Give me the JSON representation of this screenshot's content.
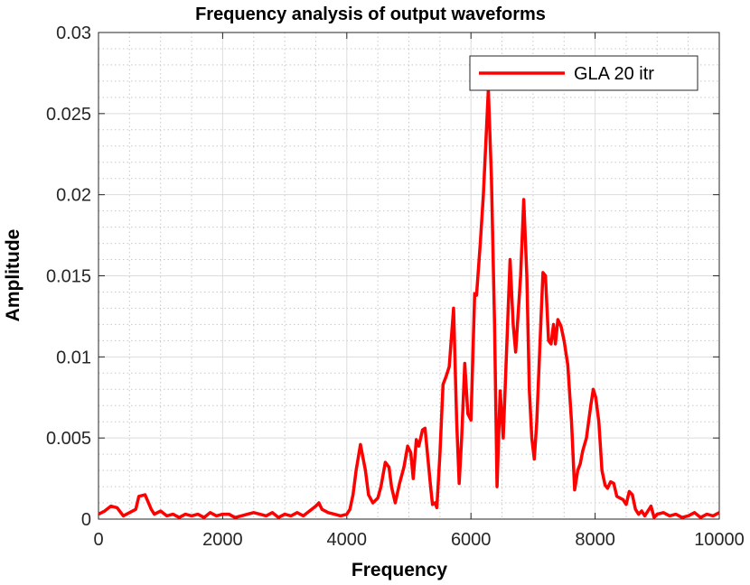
{
  "chart_data": {
    "type": "line",
    "title": "Frequency analysis of output waveforms",
    "xlabel": "Frequency",
    "ylabel": "Amplitude",
    "x": [
      0,
      100,
      200,
      300,
      400,
      500,
      600,
      650,
      750,
      850,
      900,
      1000,
      1100,
      1200,
      1300,
      1400,
      1500,
      1600,
      1700,
      1800,
      1900,
      2000,
      2100,
      2200,
      2300,
      2400,
      2500,
      2600,
      2700,
      2800,
      2900,
      3000,
      3100,
      3200,
      3300,
      3400,
      3500,
      3550,
      3600,
      3700,
      3800,
      3900,
      4000,
      4050,
      4100,
      4150,
      4220,
      4300,
      4350,
      4420,
      4500,
      4550,
      4620,
      4680,
      4720,
      4780,
      4850,
      4920,
      4980,
      5030,
      5070,
      5120,
      5160,
      5220,
      5260,
      5300,
      5350,
      5380,
      5420,
      5450,
      5500,
      5550,
      5600,
      5650,
      5720,
      5770,
      5810,
      5850,
      5900,
      5950,
      6000,
      6060,
      6090,
      6150,
      6200,
      6280,
      6330,
      6380,
      6420,
      6470,
      6520,
      6560,
      6630,
      6680,
      6720,
      6800,
      6850,
      6900,
      6940,
      6980,
      7020,
      7060,
      7130,
      7160,
      7200,
      7250,
      7290,
      7330,
      7360,
      7400,
      7450,
      7500,
      7560,
      7620,
      7670,
      7720,
      7760,
      7800,
      7860,
      7930,
      7970,
      8010,
      8060,
      8110,
      8160,
      8200,
      8250,
      8300,
      8350,
      8400,
      8450,
      8500,
      8550,
      8600,
      8650,
      8700,
      8750,
      8800,
      8850,
      8900,
      8950,
      9000,
      9100,
      9200,
      9300,
      9400,
      9500,
      9600,
      9700,
      9800,
      9900,
      10000
    ],
    "series": [
      {
        "name": "GLA 20 itr",
        "color": "#ff0000",
        "values": [
          0.0003,
          0.0005,
          0.0008,
          0.0007,
          0.0002,
          0.0004,
          0.0006,
          0.0014,
          0.0015,
          0.0006,
          0.0003,
          0.0005,
          0.0002,
          0.0003,
          0.0001,
          0.0003,
          0.0002,
          0.0003,
          0.0001,
          0.0004,
          0.0002,
          0.0003,
          0.0003,
          0.0001,
          0.0002,
          0.0003,
          0.0004,
          0.0003,
          0.0002,
          0.0004,
          0.0001,
          0.0003,
          0.0002,
          0.0004,
          0.0002,
          0.0005,
          0.0008,
          0.001,
          0.0006,
          0.0004,
          0.0003,
          0.0002,
          0.0003,
          0.0006,
          0.0015,
          0.003,
          0.0046,
          0.003,
          0.0015,
          0.001,
          0.0013,
          0.002,
          0.0035,
          0.0032,
          0.002,
          0.001,
          0.0022,
          0.0032,
          0.0045,
          0.0041,
          0.0025,
          0.0049,
          0.0045,
          0.0055,
          0.0056,
          0.004,
          0.002,
          0.0009,
          0.001,
          0.0007,
          0.004,
          0.0083,
          0.0088,
          0.0094,
          0.013,
          0.006,
          0.0022,
          0.005,
          0.0096,
          0.0065,
          0.0061,
          0.0139,
          0.0138,
          0.017,
          0.02,
          0.0265,
          0.021,
          0.012,
          0.002,
          0.0079,
          0.005,
          0.009,
          0.016,
          0.012,
          0.0103,
          0.015,
          0.0197,
          0.015,
          0.008,
          0.005,
          0.0037,
          0.006,
          0.0125,
          0.0152,
          0.015,
          0.011,
          0.0108,
          0.012,
          0.0108,
          0.0123,
          0.0119,
          0.011,
          0.0095,
          0.006,
          0.0018,
          0.003,
          0.0034,
          0.0042,
          0.005,
          0.007,
          0.008,
          0.0075,
          0.006,
          0.003,
          0.0021,
          0.0019,
          0.0023,
          0.0022,
          0.0014,
          0.0013,
          0.0012,
          0.0009,
          0.0017,
          0.0015,
          0.0006,
          0.0003,
          0.0005,
          0.0002,
          0.0005,
          0.0008,
          0.0001,
          0.0003,
          0.0004,
          0.0002,
          0.0003,
          0.0001,
          0.0002,
          0.0004,
          0.0001,
          0.0003,
          0.0002,
          0.0004
        ]
      }
    ],
    "xlim": [
      0,
      10000
    ],
    "ylim": [
      0,
      0.03
    ],
    "xticks": [
      0,
      2000,
      4000,
      6000,
      8000,
      10000
    ],
    "yticks": [
      0,
      0.005,
      0.01,
      0.015,
      0.02,
      0.025,
      0.03
    ],
    "grid": true,
    "minor_grid": true,
    "legend": "top-right"
  }
}
